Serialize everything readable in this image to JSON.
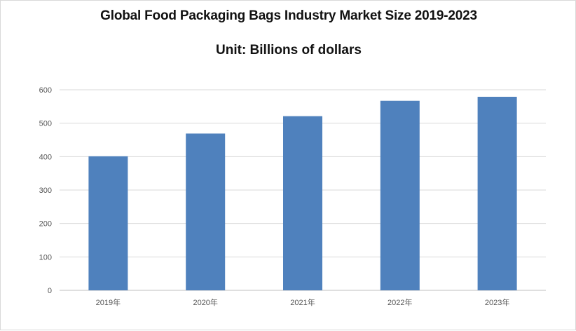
{
  "chart_data": {
    "type": "bar",
    "title": "Global Food Packaging Bags Industry Market Size 2019-2023",
    "subtitle": "Unit: Billions of dollars",
    "categories": [
      "2019年",
      "2020年",
      "2021年",
      "2022年",
      "2023年"
    ],
    "values": [
      401,
      469,
      521,
      567,
      579
    ],
    "ylim": [
      0,
      600
    ],
    "yticks": [
      0,
      100,
      200,
      300,
      400,
      500,
      600
    ],
    "grid": true,
    "legend": "none",
    "bar_color": "#4f81bd",
    "grid_color": "#d9d9d9"
  }
}
